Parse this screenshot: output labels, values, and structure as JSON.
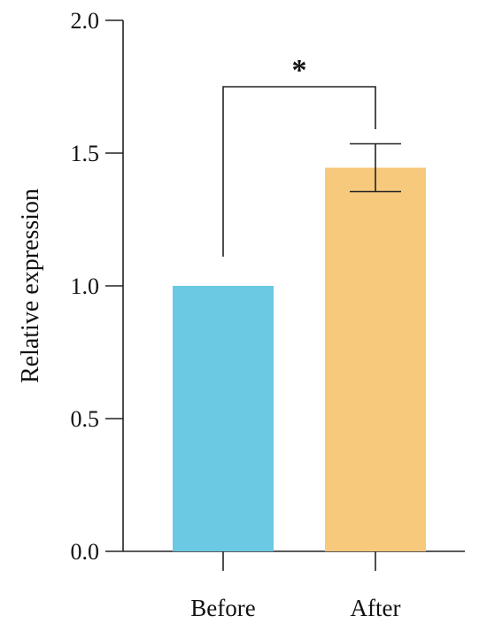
{
  "chart_data": {
    "type": "bar",
    "categories": [
      "Before",
      "After"
    ],
    "values": [
      1.0,
      1.445
    ],
    "error_bars": [
      null,
      {
        "low": 1.355,
        "high": 1.535
      }
    ],
    "colors": [
      "#6bc9e4",
      "#f7c97d"
    ],
    "ylabel": "Relative expression",
    "xlabel": "",
    "title": "",
    "ylim": [
      0.0,
      2.0
    ],
    "yticks": [
      0.0,
      0.5,
      1.0,
      1.5,
      2.0
    ],
    "ytick_labels": [
      "0.0",
      "0.5",
      "1.0",
      "1.5",
      "2.0"
    ],
    "significance": {
      "between": [
        "Before",
        "After"
      ],
      "label": "*",
      "level": 1.75
    },
    "grid": false,
    "legend": "none"
  }
}
